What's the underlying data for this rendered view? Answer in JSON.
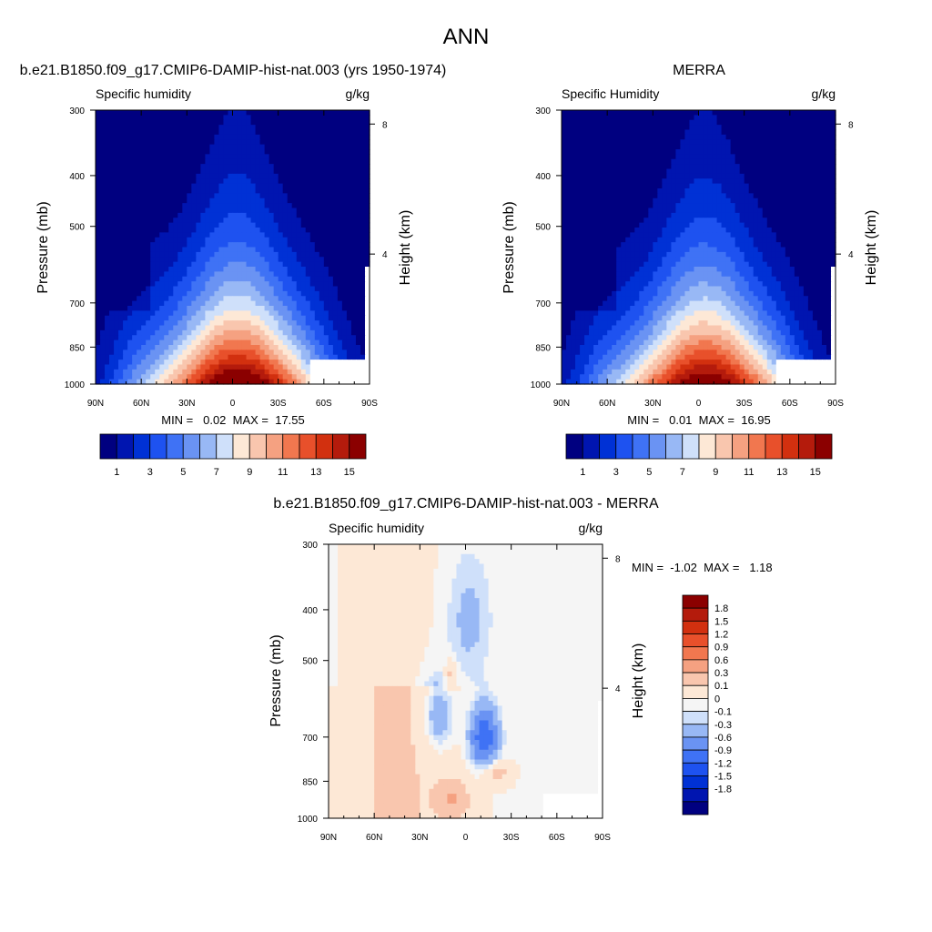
{
  "page": {
    "title": "ANN"
  },
  "colors": {
    "abs_levels": [
      "#000080",
      "#0015b0",
      "#0031d5",
      "#1e52f0",
      "#3f72f5",
      "#6a93f3",
      "#98b8f5",
      "#cfe0fa",
      "#fde8d6",
      "#f9c6ae",
      "#f5a181",
      "#f1774f",
      "#e8502b",
      "#d2300f",
      "#b41b0c",
      "#8b0000"
    ],
    "diff_levels": [
      "#000080",
      "#0015b0",
      "#0031d5",
      "#1e52f0",
      "#3f72f5",
      "#6a93f3",
      "#98b8f5",
      "#cfe0fa",
      "#f5f5f5",
      "#fde8d6",
      "#f9c6ae",
      "#f5a181",
      "#f1774f",
      "#e8502b",
      "#d2300f",
      "#b41b0c",
      "#8b0000"
    ],
    "missing": "#ffffff"
  },
  "chart_data": [
    {
      "id": "model",
      "type": "heatmap",
      "title": "b.e21.B1850.f09_g17.CMIP6-DAMIP-hist-nat.003 (yrs 1950-1974)",
      "left_label": "Specific humidity",
      "right_label": "g/kg",
      "ylabel": "Pressure (mb)",
      "ylabel_right": "Height (km)",
      "x_ticks": [
        "90N",
        "60N",
        "30N",
        "0",
        "30S",
        "60S",
        "90S"
      ],
      "x_tick_values": [
        90,
        60,
        30,
        0,
        -30,
        -60,
        -90
      ],
      "y_ticks": [
        "300",
        "400",
        "500",
        "700",
        "850",
        "1000"
      ],
      "y_tick_values": [
        300,
        400,
        500,
        700,
        850,
        1000
      ],
      "height_ticks": [
        "8",
        "4"
      ],
      "height_tick_values": [
        8,
        4
      ],
      "ylim": [
        300,
        1000
      ],
      "xlim": [
        90,
        -90
      ],
      "min": 0.02,
      "max": 17.55,
      "stats_label": "MIN =   0.02  MAX =  17.55",
      "levels": [
        1,
        2,
        3,
        4,
        5,
        6,
        7,
        8,
        9,
        10,
        11,
        12,
        13,
        14,
        15
      ],
      "colorbar_labels": [
        "1",
        "3",
        "5",
        "7",
        "9",
        "11",
        "13",
        "15"
      ],
      "colorbar_label_values": [
        1,
        3,
        5,
        7,
        9,
        11,
        13,
        15
      ],
      "model": "humidity"
    },
    {
      "id": "obs",
      "type": "heatmap",
      "title": "MERRA",
      "left_label": "Specific Humidity",
      "right_label": "g/kg",
      "ylabel": "Pressure (mb)",
      "ylabel_right": "Height (km)",
      "x_ticks": [
        "90N",
        "60N",
        "30N",
        "0",
        "30S",
        "60S",
        "90S"
      ],
      "x_tick_values": [
        90,
        60,
        30,
        0,
        -30,
        -60,
        -90
      ],
      "y_ticks": [
        "300",
        "400",
        "500",
        "700",
        "850",
        "1000"
      ],
      "y_tick_values": [
        300,
        400,
        500,
        700,
        850,
        1000
      ],
      "height_ticks": [
        "8",
        "4"
      ],
      "height_tick_values": [
        8,
        4
      ],
      "ylim": [
        300,
        1000
      ],
      "xlim": [
        90,
        -90
      ],
      "min": 0.01,
      "max": 16.95,
      "stats_label": "MIN =   0.01  MAX =  16.95",
      "levels": [
        1,
        2,
        3,
        4,
        5,
        6,
        7,
        8,
        9,
        10,
        11,
        12,
        13,
        14,
        15
      ],
      "colorbar_labels": [
        "1",
        "3",
        "5",
        "7",
        "9",
        "11",
        "13",
        "15"
      ],
      "colorbar_label_values": [
        1,
        3,
        5,
        7,
        9,
        11,
        13,
        15
      ],
      "model": "humidity"
    },
    {
      "id": "diff",
      "type": "heatmap",
      "title": "b.e21.B1850.f09_g17.CMIP6-DAMIP-hist-nat.003 - MERRA",
      "left_label": "Specific humidity",
      "right_label": "g/kg",
      "ylabel": "Pressure (mb)",
      "ylabel_right": "Height (km)",
      "x_ticks": [
        "90N",
        "60N",
        "30N",
        "0",
        "30S",
        "60S",
        "90S"
      ],
      "x_tick_values": [
        90,
        60,
        30,
        0,
        -30,
        -60,
        -90
      ],
      "y_ticks": [
        "300",
        "400",
        "500",
        "700",
        "850",
        "1000"
      ],
      "y_tick_values": [
        300,
        400,
        500,
        700,
        850,
        1000
      ],
      "height_ticks": [
        "8",
        "4"
      ],
      "height_tick_values": [
        8,
        4
      ],
      "ylim": [
        300,
        1000
      ],
      "xlim": [
        90,
        -90
      ],
      "min": -1.02,
      "max": 1.18,
      "stats_label": "MIN =  -1.02  MAX =   1.18",
      "levels": [
        -1.8,
        -1.5,
        -1.2,
        -0.9,
        -0.6,
        -0.3,
        -0.1,
        0,
        0.1,
        0.3,
        0.6,
        0.9,
        1.2,
        1.5,
        1.8
      ],
      "colorbar_labels": [
        "1.8",
        "1.5",
        "1.2",
        "0.9",
        "0.6",
        "0.3",
        "0.1",
        "0",
        "-0.1",
        "-0.3",
        "-0.6",
        "-0.9",
        "-1.2",
        "-1.5",
        "-1.8"
      ],
      "model": "difference"
    }
  ]
}
